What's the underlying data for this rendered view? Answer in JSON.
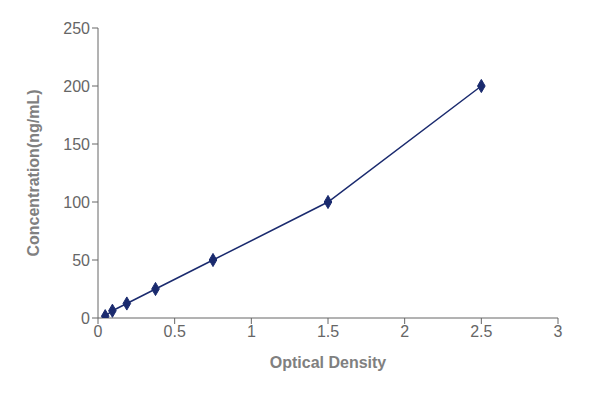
{
  "chart_data": {
    "type": "line",
    "x": [
      0.047,
      0.094,
      0.188,
      0.375,
      0.75,
      1.5,
      2.5
    ],
    "values": [
      1.5625,
      6.25,
      12.5,
      25.0,
      50.0,
      100.0,
      200.0
    ],
    "xlabel": "Optical Density",
    "ylabel": "Concentration(ng/mL)",
    "xlim": [
      0,
      3
    ],
    "ylim": [
      0,
      250
    ],
    "xticks": [
      0,
      0.5,
      1,
      1.5,
      2,
      2.5,
      3
    ],
    "yticks": [
      0,
      50,
      100,
      150,
      200,
      250
    ],
    "color": "#1a2a6e",
    "marker": "diamond",
    "grid": false
  }
}
